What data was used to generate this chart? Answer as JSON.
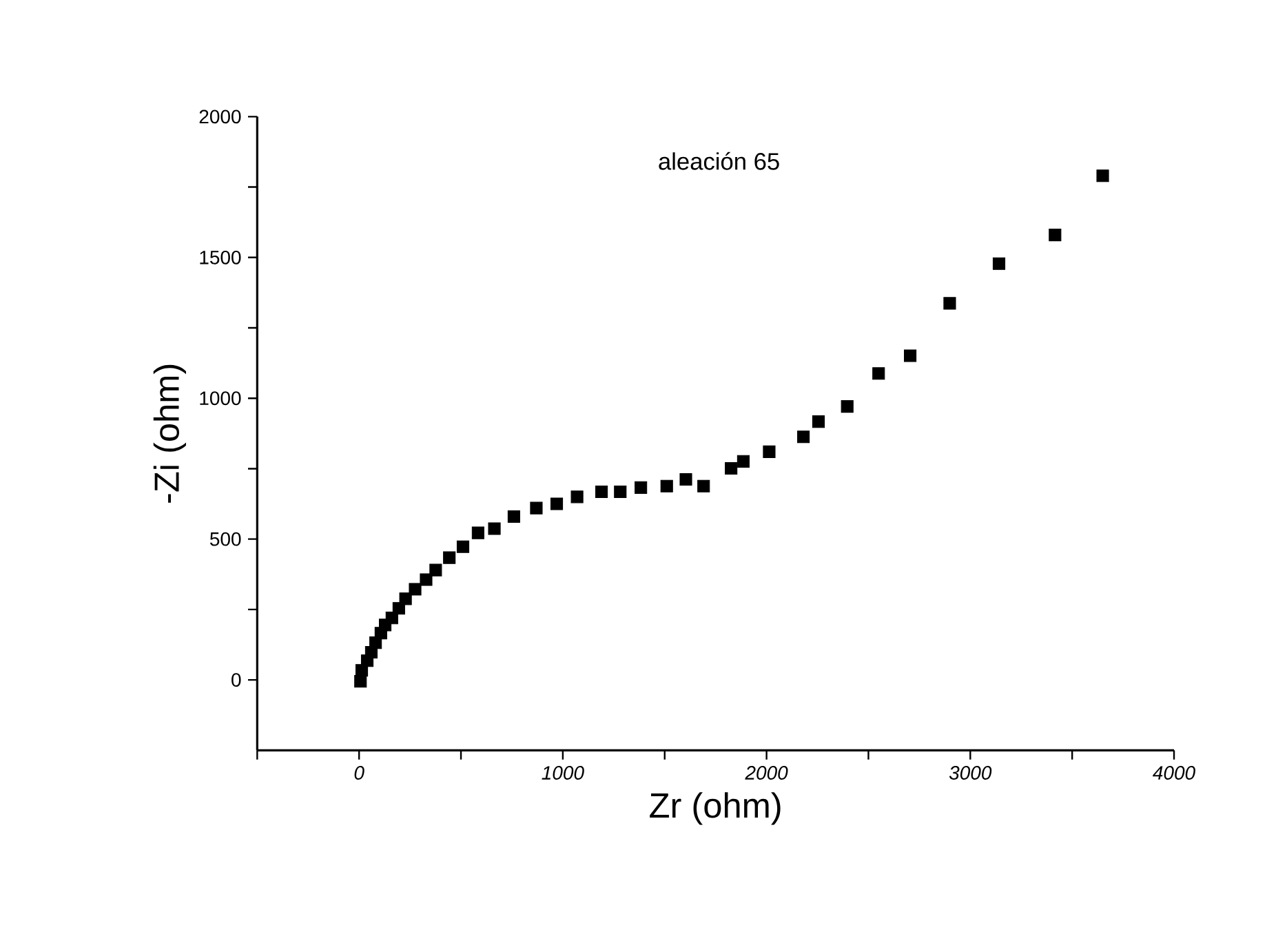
{
  "chart_data": {
    "type": "scatter",
    "xlabel": "Zr (ohm)",
    "ylabel": "-Zi (ohm)",
    "annotations": [
      "aleación 65"
    ],
    "xlim": [
      -500,
      4000
    ],
    "xticks": [
      {
        "value": -500,
        "label": null
      },
      0,
      {
        "value": 500,
        "label": null
      },
      1000,
      {
        "value": 1500,
        "label": null
      },
      2000,
      {
        "value": 2500,
        "label": null
      },
      3000,
      {
        "value": 3500,
        "label": null
      },
      4000
    ],
    "ylim": [
      -250,
      2000
    ],
    "yticks": [
      0,
      {
        "value": 250,
        "label": null
      },
      500,
      {
        "value": 750,
        "label": null
      },
      1000,
      {
        "value": 1250,
        "label": null
      },
      1500,
      {
        "value": 1750,
        "label": null
      },
      2000
    ],
    "marker": "square",
    "grid": false,
    "series": [
      {
        "color": "#000000",
        "x": [
          7,
          13,
          40,
          60,
          81,
          107,
          128,
          161,
          195,
          228,
          275,
          329,
          376,
          443,
          510,
          584,
          664,
          760,
          870,
          970,
          1070,
          1190,
          1282,
          1383,
          1510,
          1604,
          1691,
          1826,
          1886,
          2013,
          2181,
          2255,
          2396,
          2550,
          2705,
          2899,
          3141,
          3416,
          3650
        ],
        "values": [
          -5,
          34,
          68,
          98,
          132,
          166,
          195,
          220,
          254,
          288,
          322,
          356,
          390,
          434,
          473,
          522,
          537,
          580,
          610,
          625,
          650,
          668,
          668,
          683,
          688,
          712,
          688,
          751,
          776,
          810,
          863,
          917,
          971,
          1088,
          1151,
          1337,
          1478,
          1580,
          1790
        ]
      }
    ]
  }
}
